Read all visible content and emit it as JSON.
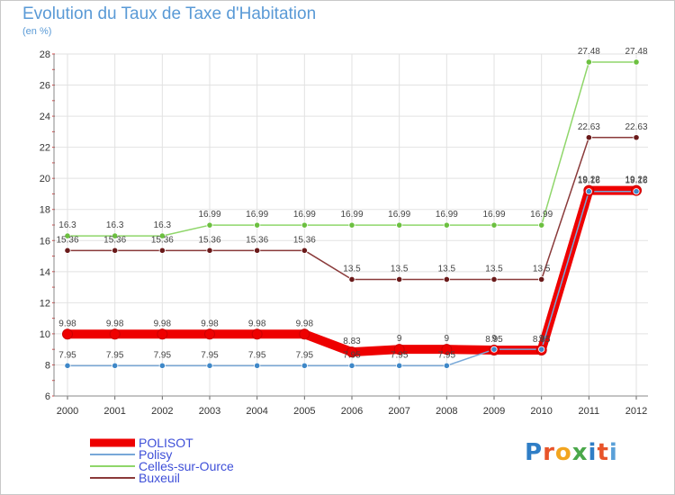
{
  "title": "Evolution du Taux de Taxe d'Habitation",
  "subtitle": "(en %)",
  "logo": {
    "text": "Proxiti",
    "colors": [
      "#2f7ec6",
      "#e8542a",
      "#f2a51f",
      "#4aa84a",
      "#2f7ec6",
      "#e8542a",
      "#5aa0d8"
    ]
  },
  "chart_data": {
    "type": "line",
    "title": "Evolution du Taux de Taxe d'Habitation",
    "ylabel": "(en %)",
    "xlabel": "",
    "x": [
      "2000",
      "2001",
      "2002",
      "2003",
      "2004",
      "2005",
      "2006",
      "2007",
      "2008",
      "2009",
      "2010",
      "2011",
      "2012"
    ],
    "ylim": [
      6,
      28
    ],
    "yticks": [
      6,
      8,
      10,
      12,
      14,
      16,
      18,
      20,
      22,
      24,
      26,
      28
    ],
    "grid": true,
    "legend_position": "bottom-left",
    "series": [
      {
        "name": "POLISOT",
        "color": "#ee0000",
        "width": 10,
        "marker": "#ee0000",
        "values": [
          9.98,
          9.98,
          9.98,
          9.98,
          9.98,
          9.98,
          8.83,
          9,
          9,
          8.95,
          8.95,
          19.22,
          19.22
        ],
        "labels": [
          "9.98",
          "9.98",
          "9.98",
          "9.98",
          "9.98",
          "9.98",
          "8.83",
          "9",
          "9",
          "8.95",
          "8.95",
          "19.22",
          "19.22"
        ]
      },
      {
        "name": "Polisy",
        "color": "#78a8d8",
        "width": 1.5,
        "marker": "#3f88c8",
        "values": [
          7.95,
          7.95,
          7.95,
          7.95,
          7.95,
          7.95,
          7.95,
          7.95,
          7.95,
          9,
          9,
          19.16,
          19.16
        ],
        "labels": [
          "7.95",
          "7.95",
          "7.95",
          "7.95",
          "7.95",
          "7.95",
          "7.95",
          "7.95",
          "7.95",
          "9",
          "9",
          "19.16",
          "19.16"
        ]
      },
      {
        "name": "Celles-sur-Ource",
        "color": "#8fd66a",
        "width": 1.5,
        "marker": "#6cc040",
        "values": [
          16.3,
          16.3,
          16.3,
          16.99,
          16.99,
          16.99,
          16.99,
          16.99,
          16.99,
          16.99,
          16.99,
          27.48,
          27.48
        ],
        "labels": [
          "16.3",
          "16.3",
          "16.3",
          "16.99",
          "16.99",
          "16.99",
          "16.99",
          "16.99",
          "16.99",
          "16.99",
          "16.99",
          "27.48",
          "27.48"
        ]
      },
      {
        "name": "Buxeuil",
        "color": "#8a3a3a",
        "width": 1.5,
        "marker": "#6a1a1a",
        "values": [
          15.36,
          15.36,
          15.36,
          15.36,
          15.36,
          15.36,
          13.5,
          13.5,
          13.5,
          13.5,
          13.5,
          22.63,
          22.63
        ],
        "labels": [
          "15.36",
          "15.36",
          "15.36",
          "15.36",
          "15.36",
          "15.36",
          "13.5",
          "13.5",
          "13.5",
          "13.5",
          "13.5",
          "22.63",
          "22.63"
        ]
      }
    ]
  }
}
